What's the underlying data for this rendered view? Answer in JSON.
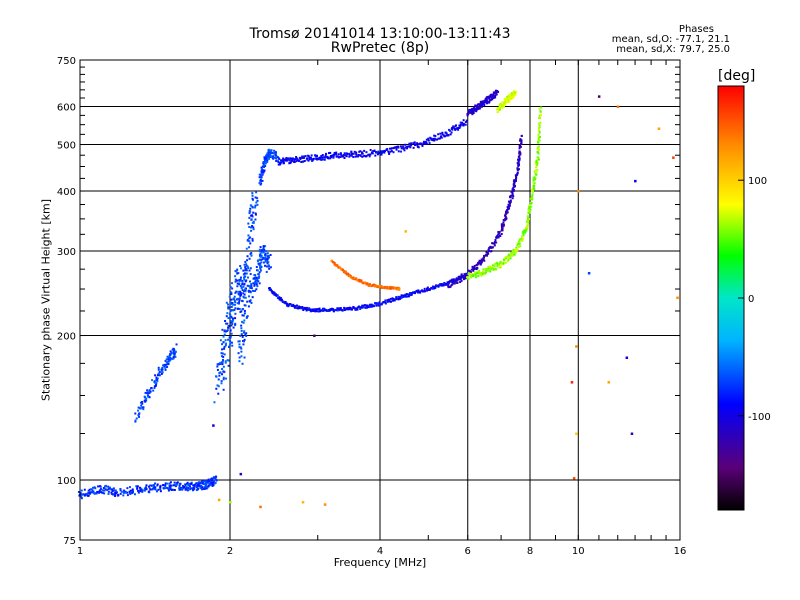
{
  "header": {
    "title": "Tromsø 20141014 13:10:00-13:11:43",
    "subtitle": "RwPretec (8p)",
    "phases_label": "Phases",
    "phase_o": "mean, sd,O: -77.1, 21.1",
    "phase_x": "mean, sd,X:  79.7, 25.0"
  },
  "colorbar": {
    "title": "[deg]",
    "ticks": [
      "100",
      "0",
      "-100"
    ],
    "tick_values": [
      100,
      0,
      -100
    ],
    "range": [
      -180,
      180
    ]
  },
  "chart_data": {
    "type": "scatter",
    "xlabel": "Frequency [MHz]",
    "ylabel": "Stationary phase Virtual Height [km]",
    "xscale": "log",
    "yscale": "log",
    "xlim": [
      1,
      16
    ],
    "ylim": [
      75,
      750
    ],
    "xticks": [
      1,
      2,
      4,
      6,
      8,
      10,
      16
    ],
    "xtick_labels": [
      "1",
      "2",
      "4",
      "6",
      "8",
      "10",
      "16"
    ],
    "yticks": [
      75,
      100,
      200,
      300,
      400,
      500,
      600,
      750
    ],
    "ytick_labels": [
      "75",
      "100",
      "200",
      "300",
      "400",
      "500",
      "600",
      "750"
    ],
    "grid": true,
    "traces": [
      {
        "x": [
          1.0,
          1.1,
          1.2,
          1.35,
          1.5,
          1.62,
          1.72,
          1.8,
          1.88
        ],
        "y": [
          93,
          96,
          94,
          96,
          97,
          97,
          97,
          98,
          100
        ],
        "phase": -75,
        "spread": 0.04
      },
      {
        "x": [
          1.3,
          1.4,
          1.5,
          1.56
        ],
        "y": [
          135,
          158,
          177,
          188
        ],
        "phase": -70,
        "spread": 0.05
      },
      {
        "x": [
          1.9,
          1.95,
          2.0,
          2.05,
          2.1,
          2.15
        ],
        "y": [
          155,
          185,
          215,
          240,
          255,
          265
        ],
        "phase": -70,
        "spread": 0.15
      },
      {
        "x": [
          2.1,
          2.15,
          2.2,
          2.25
        ],
        "y": [
          180,
          230,
          330,
          400
        ],
        "phase": -70,
        "spread": 0.1
      },
      {
        "x": [
          2.2,
          2.28,
          2.33,
          2.4
        ],
        "y": [
          240,
          270,
          300,
          280
        ],
        "phase": -70,
        "spread": 0.08
      },
      {
        "x": [
          2.3,
          2.35,
          2.4,
          2.5
        ],
        "y": [
          420,
          460,
          480,
          470
        ],
        "phase": -70,
        "spread": 0.04
      },
      {
        "x": [
          2.5,
          2.7,
          3.0,
          3.3,
          3.7,
          4.2,
          4.8,
          5.4,
          6.0
        ],
        "y": [
          460,
          465,
          470,
          475,
          478,
          485,
          500,
          525,
          560
        ],
        "phase": -95,
        "spread": 0.03
      },
      {
        "x": [
          2.4,
          2.6,
          2.9,
          3.2,
          3.6,
          4.0,
          4.5,
          5.0,
          5.5,
          6.0
        ],
        "y": [
          250,
          232,
          226,
          226,
          228,
          233,
          242,
          250,
          258,
          268
        ],
        "phase": -90,
        "spread": 0.015
      },
      {
        "x": [
          3.2,
          3.5,
          3.8,
          4.1,
          4.4
        ],
        "y": [
          285,
          265,
          255,
          252,
          250
        ],
        "phase": 140,
        "spread": 0.01
      },
      {
        "x": [
          5.5,
          6.0,
          6.5,
          7.0,
          7.3,
          7.55,
          7.7
        ],
        "y": [
          255,
          268,
          290,
          330,
          380,
          440,
          520
        ],
        "phase": -115,
        "spread": 0.03
      },
      {
        "x": [
          6.0,
          6.5,
          7.0,
          7.5,
          7.9,
          8.1,
          8.3,
          8.4
        ],
        "y": [
          265,
          272,
          282,
          300,
          340,
          400,
          470,
          600
        ],
        "phase": 60,
        "spread": 0.03
      },
      {
        "x": [
          6.0,
          6.3,
          6.6,
          6.9
        ],
        "y": [
          580,
          600,
          620,
          645
        ],
        "phase": -110,
        "spread": 0.03
      },
      {
        "x": [
          6.9,
          7.2,
          7.5
        ],
        "y": [
          590,
          620,
          640
        ],
        "phase": 70,
        "spread": 0.03
      }
    ],
    "scatter_points": [
      {
        "x": 2.1,
        "y": 103,
        "phase": -110
      },
      {
        "x": 1.9,
        "y": 91,
        "phase": 120
      },
      {
        "x": 2.0,
        "y": 90,
        "phase": 60
      },
      {
        "x": 2.3,
        "y": 88,
        "phase": 140
      },
      {
        "x": 2.8,
        "y": 90,
        "phase": 110
      },
      {
        "x": 3.1,
        "y": 89,
        "phase": 130
      },
      {
        "x": 1.85,
        "y": 130,
        "phase": -100
      },
      {
        "x": 2.95,
        "y": 200,
        "phase": -140
      },
      {
        "x": 10.0,
        "y": 400,
        "phase": 130
      },
      {
        "x": 11.0,
        "y": 630,
        "phase": -150
      },
      {
        "x": 12.0,
        "y": 600,
        "phase": 140
      },
      {
        "x": 13.0,
        "y": 420,
        "phase": -90
      },
      {
        "x": 14.5,
        "y": 540,
        "phase": 120
      },
      {
        "x": 15.5,
        "y": 470,
        "phase": 160
      },
      {
        "x": 9.9,
        "y": 190,
        "phase": 130
      },
      {
        "x": 10.5,
        "y": 270,
        "phase": -70
      },
      {
        "x": 12.5,
        "y": 180,
        "phase": -100
      },
      {
        "x": 9.8,
        "y": 101,
        "phase": 150
      },
      {
        "x": 9.9,
        "y": 125,
        "phase": 100
      },
      {
        "x": 12.8,
        "y": 125,
        "phase": -120
      },
      {
        "x": 11.5,
        "y": 160,
        "phase": 120
      },
      {
        "x": 15.8,
        "y": 240,
        "phase": 130
      },
      {
        "x": 9.7,
        "y": 160,
        "phase": 170
      },
      {
        "x": 4.5,
        "y": 330,
        "phase": 110
      }
    ]
  }
}
